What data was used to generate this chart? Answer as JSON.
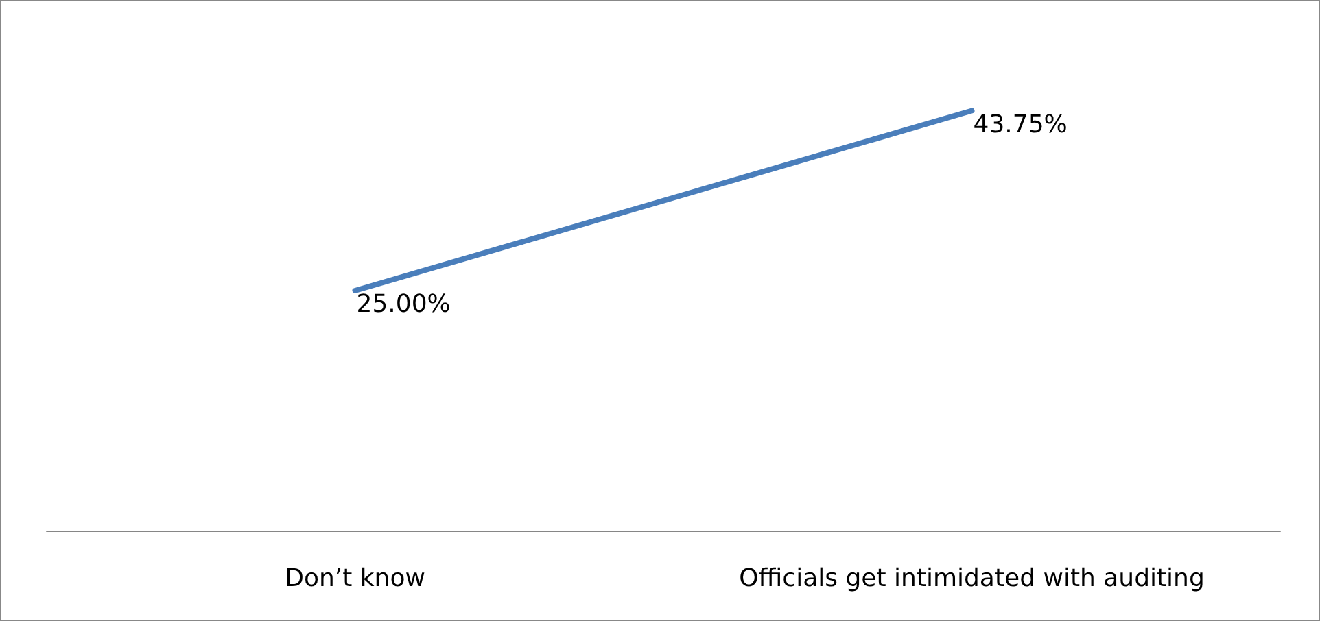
{
  "chart_data": {
    "type": "line",
    "categories": [
      "Don’t know",
      "Officials get intimidated with auditing"
    ],
    "series": [
      {
        "color": "#4a7ebb",
        "values": [
          25,
          43.75
        ],
        "value_labels": [
          "25.00%",
          "43.75%"
        ]
      }
    ],
    "tick_labels": "x",
    "grid": false,
    "marker": "none",
    "line_style": "solid"
  }
}
